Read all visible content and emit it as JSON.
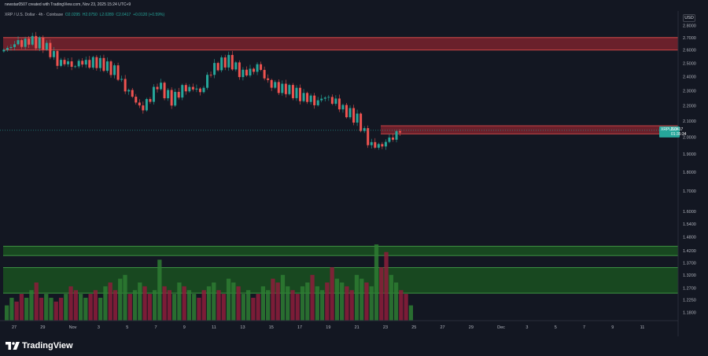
{
  "header": {
    "created_by": "newstar0507 created with TradingView.com, Nov 23, 2025 15:24 UTC+9"
  },
  "legend": {
    "symbol": "XRP / U.S. Dollar · 4h · Coinbase",
    "open": "O2.0295",
    "high": "H2.0750",
    "low": "L2.0289",
    "close": "C2.0417",
    "change": "+0.0120 (+0.59%)"
  },
  "currency": "USD",
  "last_price": {
    "symbol": "XRPUSD",
    "price": "2.0417",
    "countdown": "01:35:34"
  },
  "footer": {
    "brand": "TradingView"
  },
  "colors": {
    "background": "#131722",
    "up": "#26a69a",
    "down": "#ef5350",
    "resistance_zone": "#b22833",
    "volume_zone": "#1b5e20"
  },
  "chart_data": {
    "type": "candlestick",
    "symbol": "XRP / U.S. Dollar",
    "interval": "4h",
    "exchange": "Coinbase",
    "y_ticks": [
      "2.8000",
      "2.7000",
      "2.6000",
      "2.5000",
      "2.4000",
      "2.3000",
      "2.2000",
      "2.1000",
      "2.0000",
      "1.9000",
      "1.8000",
      "1.7000",
      "1.6000",
      "1.5400",
      "1.4800",
      "1.4200",
      "1.3700",
      "1.3200",
      "1.2700",
      "1.2250",
      "1.1800"
    ],
    "x_ticks": [
      "27",
      "29",
      "Nov",
      "3",
      "5",
      "7",
      "9",
      "11",
      "13",
      "15",
      "17",
      "19",
      "21",
      "23",
      "25",
      "27",
      "29",
      "Dec",
      "3",
      "5",
      "7",
      "9",
      "11"
    ],
    "ylim": [
      1.17,
      2.87
    ],
    "scale": "log",
    "grid": false,
    "price_path": [
      {
        "date": "2025-10-26",
        "price": 2.59
      },
      {
        "date": "2025-10-27",
        "price": 2.64
      },
      {
        "date": "2025-10-28",
        "price": 2.67
      },
      {
        "date": "2025-10-29",
        "price": 2.65
      },
      {
        "date": "2025-10-30",
        "price": 2.52
      },
      {
        "date": "2025-10-31",
        "price": 2.49
      },
      {
        "date": "2025-11-01",
        "price": 2.51
      },
      {
        "date": "2025-11-02",
        "price": 2.5
      },
      {
        "date": "2025-11-03",
        "price": 2.44
      },
      {
        "date": "2025-11-04",
        "price": 2.28
      },
      {
        "date": "2025-11-05",
        "price": 2.17
      },
      {
        "date": "2025-11-06",
        "price": 2.34
      },
      {
        "date": "2025-11-07",
        "price": 2.24
      },
      {
        "date": "2025-11-08",
        "price": 2.33
      },
      {
        "date": "2025-11-09",
        "price": 2.3
      },
      {
        "date": "2025-11-10",
        "price": 2.48
      },
      {
        "date": "2025-11-11",
        "price": 2.52
      },
      {
        "date": "2025-11-12",
        "price": 2.41
      },
      {
        "date": "2025-11-13",
        "price": 2.47
      },
      {
        "date": "2025-11-14",
        "price": 2.33
      },
      {
        "date": "2025-11-15",
        "price": 2.31
      },
      {
        "date": "2025-11-16",
        "price": 2.27
      },
      {
        "date": "2025-11-17",
        "price": 2.23
      },
      {
        "date": "2025-11-18",
        "price": 2.26
      },
      {
        "date": "2025-11-19",
        "price": 2.18
      },
      {
        "date": "2025-11-20",
        "price": 2.11
      },
      {
        "date": "2025-11-21",
        "price": 1.94
      },
      {
        "date": "2025-11-22",
        "price": 1.96
      },
      {
        "date": "2025-11-23",
        "price": 2.0417
      }
    ],
    "volume_relative": [
      0.2,
      0.3,
      0.25,
      0.35,
      0.3,
      0.4,
      0.5,
      0.3,
      0.35,
      0.3,
      0.25,
      0.3,
      0.35,
      0.45,
      0.4,
      0.35,
      0.3,
      0.35,
      0.4,
      0.3,
      0.45,
      0.5,
      0.4,
      0.55,
      0.6,
      0.35,
      0.4,
      0.5,
      0.45,
      0.35,
      0.4,
      0.8,
      0.45,
      0.4,
      0.35,
      0.5,
      0.45,
      0.4,
      0.35,
      0.3,
      0.4,
      0.45,
      0.5,
      0.4,
      0.35,
      0.55,
      0.5,
      0.45,
      0.35,
      0.4,
      0.3,
      0.35,
      0.45,
      0.4,
      0.55,
      0.5,
      0.6,
      0.45,
      0.4,
      0.35,
      0.45,
      0.5,
      0.6,
      0.45,
      0.4,
      0.5,
      0.7,
      0.55,
      0.5,
      0.45,
      0.4,
      0.6,
      0.55,
      0.5,
      0.45,
      1.0,
      0.7,
      0.9,
      0.6,
      0.5,
      0.4,
      0.35,
      0.2
    ],
    "resistance_zones": [
      {
        "from": 2.6,
        "to": 2.7
      },
      {
        "from": 2.02,
        "to": 2.07
      }
    ],
    "volume_zones": [
      {
        "from": 1.4,
        "to": 1.44
      },
      {
        "from": 1.25,
        "to": 1.35
      }
    ],
    "current_price": 2.0417
  }
}
